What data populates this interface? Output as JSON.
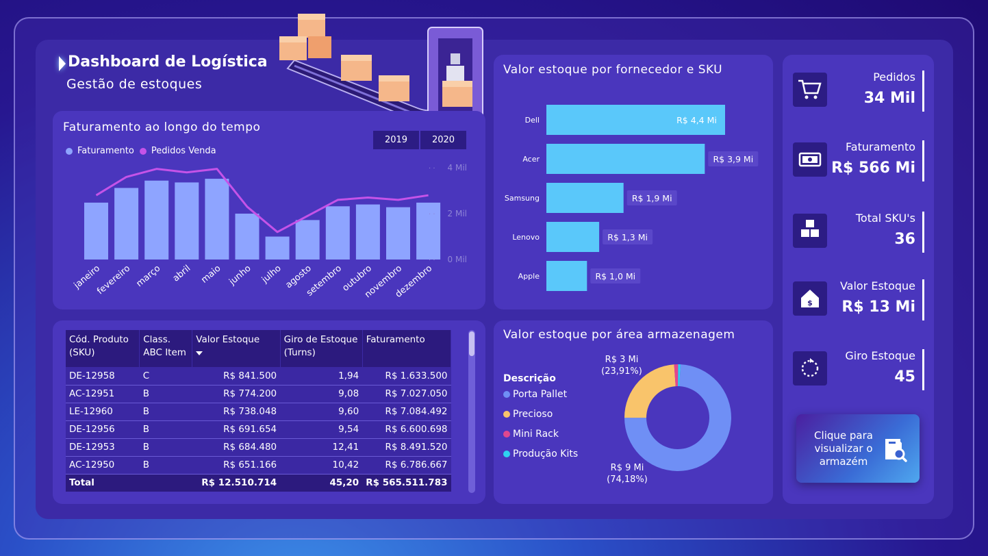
{
  "header": {
    "title": "Dashboard de Logística",
    "subtitle": "Gestão de estoques"
  },
  "revenue_chart": {
    "title": "Faturamento ao longo do tempo",
    "years": [
      "2019",
      "2020"
    ],
    "legend": [
      {
        "name": "Faturamento",
        "color": "#8ea4ff"
      },
      {
        "name": "Pedidos Venda",
        "color": "#c553e8"
      }
    ],
    "y_ticks": [
      "4 Mil",
      "2 Mil",
      "0 Mil"
    ]
  },
  "supplier_chart": {
    "title": "Valor estoque por fornecedor e SKU"
  },
  "area_chart": {
    "title": "Valor estoque por área armazenagem",
    "legend_title": "Descrição",
    "label_top": "R$ 3 Mi",
    "label_top_pct": "(23,91%)",
    "label_bottom": "R$ 9 Mi",
    "label_bottom_pct": "(74,18%)"
  },
  "table": {
    "headers": {
      "sku": "Cód. Produto (SKU)",
      "abc": "Class. ABC Item",
      "valor": "Valor Estoque",
      "giro": "Giro de Estoque (Turns)",
      "fat": "Faturamento"
    },
    "rows": [
      {
        "sku": "DE-12958",
        "abc": "C",
        "valor": "R$ 841.500",
        "giro": "1,94",
        "fat": "R$ 1.633.500"
      },
      {
        "sku": "AC-12951",
        "abc": "B",
        "valor": "R$ 774.200",
        "giro": "9,08",
        "fat": "R$ 7.027.050"
      },
      {
        "sku": "LE-12960",
        "abc": "B",
        "valor": "R$ 738.048",
        "giro": "9,60",
        "fat": "R$ 7.084.492"
      },
      {
        "sku": "DE-12956",
        "abc": "B",
        "valor": "R$ 691.654",
        "giro": "9,54",
        "fat": "R$ 6.600.698"
      },
      {
        "sku": "DE-12953",
        "abc": "B",
        "valor": "R$ 684.480",
        "giro": "12,41",
        "fat": "R$ 8.491.520"
      },
      {
        "sku": "AC-12950",
        "abc": "B",
        "valor": "R$ 651.166",
        "giro": "10,42",
        "fat": "R$ 6.786.667"
      }
    ],
    "total": {
      "label": "Total",
      "valor": "R$ 12.510.714",
      "giro": "45,20",
      "fat": "R$ 565.511.783"
    }
  },
  "kpis": [
    {
      "label": "Pedidos",
      "value": "34 Mil",
      "icon": "cart-icon"
    },
    {
      "label": "Faturamento",
      "value": "R$ 566 Mi",
      "icon": "money-icon"
    },
    {
      "label": "Total SKU's",
      "value": "36",
      "icon": "boxes-icon"
    },
    {
      "label": "Valor Estoque",
      "value": "R$ 13 Mi",
      "icon": "house-dollar-icon"
    },
    {
      "label": "Giro Estoque",
      "value": "45",
      "icon": "refresh-icon"
    }
  ],
  "cta": {
    "label": "Clique para visualizar o armazém"
  },
  "chart_data": [
    {
      "type": "bar",
      "title": "Faturamento ao longo do tempo",
      "categories": [
        "janeiro",
        "fevereiro",
        "março",
        "abril",
        "maio",
        "junho",
        "julho",
        "agosto",
        "setembro",
        "outubro",
        "novembro",
        "dezembro"
      ],
      "series": [
        {
          "name": "Faturamento",
          "color": "#8ea4ff",
          "values": [
            62,
            78,
            86,
            84,
            88,
            50,
            25,
            43,
            58,
            60,
            57,
            62
          ]
        },
        {
          "name": "Pedidos Venda",
          "type": "line",
          "color": "#c553e8",
          "values": [
            2800,
            3600,
            3950,
            3800,
            3950,
            2300,
            1200,
            1900,
            2600,
            2700,
            2600,
            2800
          ]
        }
      ],
      "y_ticks": [
        "0 Mil",
        "2 Mil",
        "4 Mil"
      ],
      "ylim": [
        0,
        4000
      ],
      "legend": "top-left"
    },
    {
      "type": "bar",
      "orientation": "horizontal",
      "title": "Valor estoque por fornecedor e SKU",
      "categories": [
        "Dell",
        "Acer",
        "Samsung",
        "Lenovo",
        "Apple"
      ],
      "values": [
        4.4,
        3.9,
        1.9,
        1.3,
        1.0
      ],
      "labels": [
        "R$ 4,4 Mi",
        "R$ 3,9 Mi",
        "R$ 1,9 Mi",
        "R$ 1,3 Mi",
        "R$ 1,0 Mi"
      ],
      "color": "#5ac8fa",
      "xlim": [
        0,
        4.4
      ]
    },
    {
      "type": "pie",
      "title": "Valor estoque por área armazenagem",
      "donut": true,
      "categories": [
        "Porta Pallet",
        "Precioso",
        "Mini Rack",
        "Produção Kits"
      ],
      "values": [
        74.18,
        23.91,
        1.2,
        0.71
      ],
      "colors": [
        "#6f8ff5",
        "#f9c46b",
        "#e0478f",
        "#2ed3f0"
      ],
      "legend": "left"
    }
  ]
}
